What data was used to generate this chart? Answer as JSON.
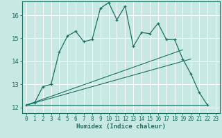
{
  "xlabel": "Humidex (Indice chaleur)",
  "bg_color": "#c8e8e4",
  "grid_color": "#ffffff",
  "line_color": "#1a7060",
  "xlim": [
    -0.5,
    23.5
  ],
  "ylim": [
    11.75,
    16.6
  ],
  "xticks": [
    0,
    1,
    2,
    3,
    4,
    5,
    6,
    7,
    8,
    9,
    10,
    11,
    12,
    13,
    14,
    15,
    16,
    17,
    18,
    19,
    20,
    21,
    22,
    23
  ],
  "yticks": [
    12,
    13,
    14,
    15,
    16
  ],
  "line1_x": [
    0,
    1,
    2,
    3,
    4,
    5,
    6,
    7,
    8,
    9,
    10,
    11,
    12,
    13,
    14,
    15,
    16,
    17,
    18,
    19,
    20,
    21,
    22
  ],
  "line1_y": [
    12.1,
    12.2,
    12.9,
    13.0,
    14.4,
    15.1,
    15.3,
    14.85,
    14.95,
    16.3,
    16.55,
    15.8,
    16.4,
    14.65,
    15.25,
    15.2,
    15.65,
    14.95,
    14.95,
    14.1,
    13.45,
    12.65,
    12.1
  ],
  "line2_x": [
    0,
    22
  ],
  "line2_y": [
    12.1,
    12.1
  ],
  "line3_x": [
    0,
    19
  ],
  "line3_y": [
    12.1,
    14.5
  ],
  "line4_x": [
    0,
    20
  ],
  "line4_y": [
    12.1,
    14.1
  ]
}
